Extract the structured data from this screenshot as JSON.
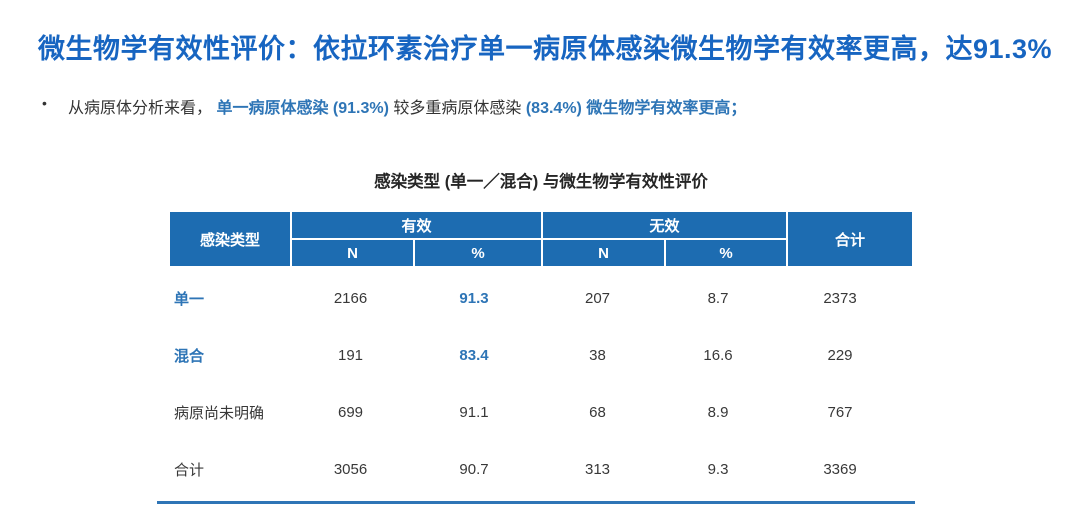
{
  "page": {
    "title": "微生物学有效性评价：依拉环素治疗单一病原体感染微生物学有效率更高，达91.3%",
    "bullet": {
      "marker": "•",
      "segments": [
        {
          "text": "从病原体分析来看，",
          "style": "dark"
        },
        {
          "text": "单一病原体感染 (91.3%) ",
          "style": "blue"
        },
        {
          "text": "较多重病原体感染 ",
          "style": "dark"
        },
        {
          "text": "(83.4%) ",
          "style": "blue"
        },
        {
          "text": "微生物学有效率更高；",
          "style": "blue"
        }
      ]
    }
  },
  "table": {
    "title": "感染类型 (单一／混合) 与微生物学有效性评价",
    "header": {
      "infection_type": "感染类型",
      "effective_group": "有效",
      "ineffective_group": "无效",
      "total": "合计",
      "eff_n": "N",
      "eff_pct": "%",
      "ineff_n": "N",
      "ineff_pct": "%"
    },
    "rows": [
      {
        "label": "单一",
        "eff_n": "2166",
        "eff_pct": "91.3",
        "ineff_n": "207",
        "ineff_pct": "8.7",
        "total": "2373"
      },
      {
        "label": "混合",
        "eff_n": "191",
        "eff_pct": "83.4",
        "ineff_n": "38",
        "ineff_pct": "16.6",
        "total": "229"
      },
      {
        "label": "病原尚未明确",
        "eff_n": "699",
        "eff_pct": "91.1",
        "ineff_n": "68",
        "ineff_pct": "8.9",
        "total": "767"
      },
      {
        "label": "合计",
        "eff_n": "3056",
        "eff_pct": "90.7",
        "ineff_n": "313",
        "ineff_pct": "9.3",
        "total": "3369"
      }
    ]
  },
  "colors": {
    "title_blue": "#1765C1",
    "accent_blue": "#2E75B6",
    "header_blue": "#1D6CB1",
    "text_dark": "#333333"
  }
}
